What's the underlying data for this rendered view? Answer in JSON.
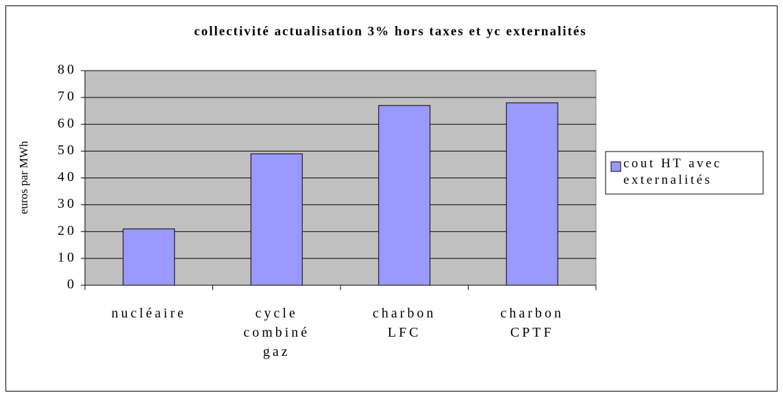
{
  "chart_data": {
    "type": "bar",
    "title": "collectivité actualisation 3% hors taxes et yc externalités",
    "y_label": "euros par MWh",
    "categories": [
      "nucléaire",
      "cycle combiné gaz",
      "charbon LFC",
      "charbon CPTF"
    ],
    "series": [
      {
        "name": "cout HT avec externalités",
        "color": "#9999ff",
        "values": [
          21,
          49,
          67,
          68
        ]
      }
    ],
    "ylim": [
      0,
      80
    ],
    "yticks": [
      0,
      10,
      20,
      30,
      40,
      50,
      60,
      70,
      80
    ],
    "grid": true,
    "legend": "right",
    "plot_background": "#c0c0c0"
  }
}
